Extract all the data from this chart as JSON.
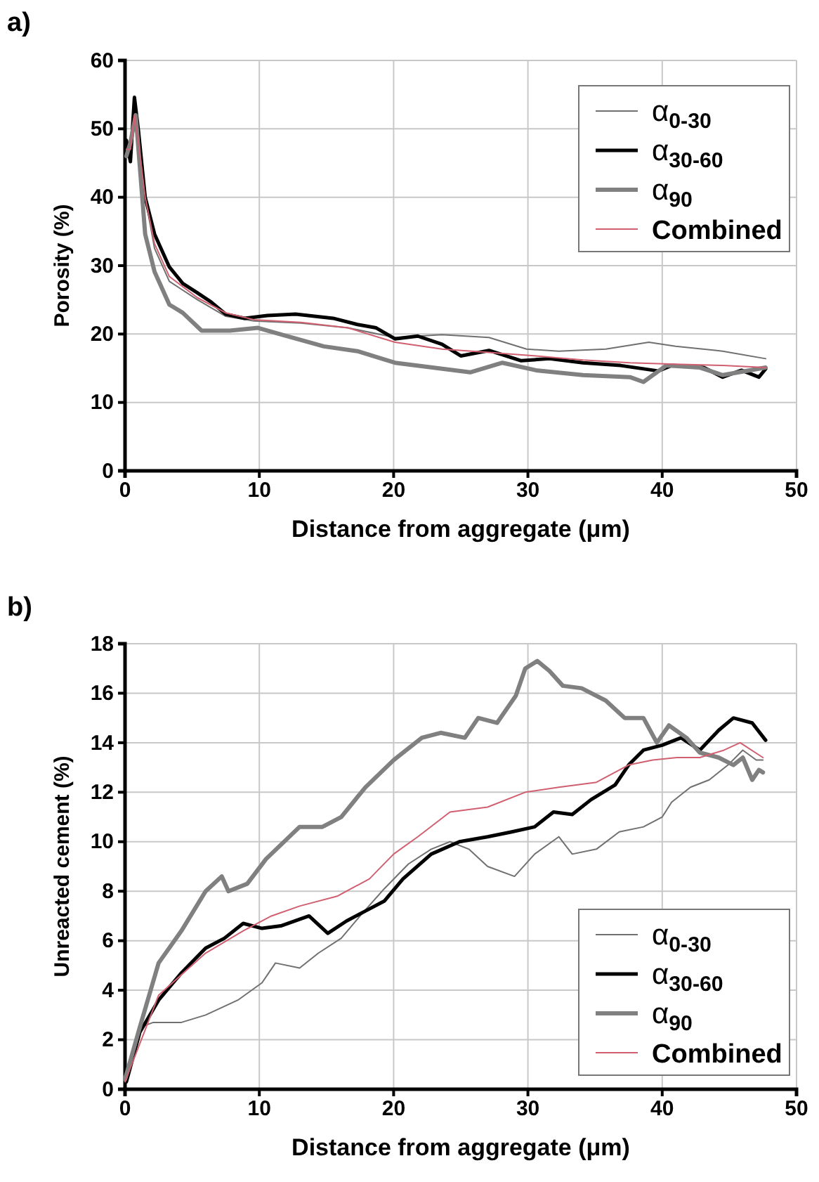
{
  "chart_data": [
    {
      "type": "line",
      "title": "a)",
      "xlabel": "Distance from aggregate (μm)",
      "ylabel": "Porosity (%)",
      "xlim": [
        0,
        50
      ],
      "xticks": [
        0,
        10,
        20,
        30,
        40,
        50
      ],
      "ylim": [
        0,
        60
      ],
      "yticks": [
        0,
        10,
        20,
        30,
        40,
        50,
        60
      ],
      "grid": true,
      "legend": "top right",
      "marker": "none",
      "line_style": "solid",
      "series": [
        {
          "name": "α$_{0-30}$",
          "color": "#707070",
          "x": [
            0.1,
            0.4,
            0.7,
            1.0,
            1.5,
            2.2,
            3.3,
            5.4,
            7.5,
            9.6,
            13.1,
            16.6,
            20.1,
            23.6,
            27.1,
            29.9,
            32.3,
            35.8,
            39,
            41,
            44.5,
            47.7
          ],
          "values": [
            47,
            46,
            51,
            48,
            40,
            32.5,
            27.7,
            25,
            22.6,
            21.9,
            21.6,
            20.9,
            19.5,
            19.9,
            19.5,
            17.8,
            17.5,
            17.8,
            18.8,
            18.2,
            17.5,
            16.4
          ]
        },
        {
          "name": "α$_{30-60}$",
          "color": "#000000",
          "x": [
            0.1,
            0.4,
            0.7,
            1.0,
            1.5,
            2.2,
            3.3,
            4.3,
            5.4,
            6.4,
            7.5,
            8.9,
            10.6,
            12.7,
            14.1,
            15.5,
            17.3,
            18.7,
            20.1,
            21.8,
            23.6,
            25,
            27.1,
            29.5,
            31.6,
            34.1,
            36.9,
            39.7,
            40.7,
            43.1,
            44.5,
            45.9,
            47.2,
            47.7
          ],
          "values": [
            48.3,
            45.2,
            54.6,
            49.7,
            40,
            34.6,
            29.8,
            27.4,
            26,
            24.7,
            22.9,
            22.3,
            22.7,
            22.9,
            22.6,
            22.3,
            21.4,
            20.9,
            19.3,
            19.7,
            18.5,
            16.8,
            17.6,
            16.1,
            16.4,
            15.8,
            15.4,
            14.6,
            15.4,
            15.1,
            13.7,
            14.7,
            13.7,
            14.9
          ]
        },
        {
          "name": "α$_{90}$",
          "color": "#808080",
          "x": [
            0.1,
            0.4,
            0.8,
            1.0,
            1.5,
            2.2,
            3.3,
            4.3,
            5.7,
            7.8,
            9.9,
            11.7,
            14.8,
            17.3,
            20.1,
            22.9,
            25.7,
            28.1,
            30.6,
            34.1,
            37.6,
            38.6,
            40.3,
            42.8,
            44.5,
            47.7
          ],
          "values": [
            46,
            48,
            52,
            47,
            34.6,
            29.1,
            24.3,
            23.1,
            20.5,
            20.5,
            20.9,
            19.9,
            18.2,
            17.5,
            15.8,
            15.1,
            14.4,
            15.8,
            14.7,
            14,
            13.7,
            13,
            15.4,
            15.1,
            14,
            15.1
          ]
        },
        {
          "name": "Combined",
          "color": "#d06070",
          "x": [
            0.1,
            0.4,
            0.7,
            1.0,
            1.5,
            2.2,
            3.3,
            5.4,
            7.5,
            9.6,
            13.1,
            16.6,
            20.1,
            23.6,
            27.1,
            30.6,
            34.1,
            37.6,
            41,
            44.5,
            47.7
          ],
          "values": [
            47,
            47,
            52,
            48,
            40,
            33.2,
            28.4,
            25.3,
            23.1,
            22.1,
            21.7,
            20.9,
            18.8,
            17.8,
            17.3,
            16.8,
            16.2,
            15.8,
            15.6,
            15.4,
            15.1
          ]
        }
      ]
    },
    {
      "type": "line",
      "title": "b)",
      "xlabel": "Distance from aggregate (μm)",
      "ylabel": "Unreacted cement (%)",
      "xlim": [
        0,
        50
      ],
      "xticks": [
        0,
        10,
        20,
        30,
        40,
        50
      ],
      "ylim": [
        0,
        18
      ],
      "yticks": [
        0,
        2,
        4,
        6,
        8,
        10,
        12,
        14,
        16,
        18
      ],
      "grid": true,
      "legend": "bottom right",
      "marker": "none",
      "line_style": "solid",
      "series": [
        {
          "name": "α$_{0-30}$",
          "color": "#707070",
          "x": [
            0.1,
            1.1,
            2.1,
            4.2,
            6,
            8.4,
            10.2,
            11.2,
            13,
            14.4,
            16.1,
            17.5,
            19.3,
            21.1,
            22.8,
            24.2,
            25.6,
            27,
            29,
            30.5,
            32.3,
            33.3,
            35.1,
            36.8,
            38.6,
            40,
            40.7,
            42.1,
            43.5,
            44.9,
            46,
            47,
            47.5
          ],
          "values": [
            0.3,
            2.5,
            2.7,
            2.7,
            3,
            3.6,
            4.3,
            5.1,
            4.9,
            5.5,
            6.1,
            7,
            8.1,
            9.1,
            9.7,
            10,
            9.7,
            9,
            8.6,
            9.5,
            10.2,
            9.5,
            9.7,
            10.4,
            10.6,
            11,
            11.6,
            12.2,
            12.5,
            13.1,
            13.7,
            13.3,
            13.3
          ]
        },
        {
          "name": "α$_{30-60}$",
          "color": "#000000",
          "x": [
            0.1,
            1.1,
            2.5,
            4.2,
            6,
            7.4,
            8.8,
            10.2,
            11.6,
            13.7,
            15.1,
            16.5,
            17.9,
            19.3,
            20.7,
            22.8,
            24.9,
            27,
            28.8,
            30.5,
            31.9,
            33.3,
            34.7,
            36.5,
            37.5,
            38.6,
            40,
            41.4,
            42.8,
            44.2,
            45.3,
            46.7,
            47.7
          ],
          "values": [
            0.3,
            2.3,
            3.6,
            4.7,
            5.7,
            6.1,
            6.7,
            6.5,
            6.6,
            7,
            6.3,
            6.8,
            7.2,
            7.6,
            8.5,
            9.5,
            10,
            10.2,
            10.4,
            10.6,
            11.2,
            11.1,
            11.7,
            12.3,
            13.1,
            13.7,
            13.9,
            14.2,
            13.7,
            14.5,
            15,
            14.8,
            14.1
          ]
        },
        {
          "name": "α$_{90}$",
          "color": "#808080",
          "x": [
            0,
            1.1,
            2.5,
            4.2,
            6,
            7.2,
            7.7,
            9.1,
            10.5,
            13,
            14.7,
            16.1,
            17.9,
            20,
            22.1,
            23.5,
            25.3,
            26.3,
            27.7,
            29.1,
            29.8,
            30.7,
            31.6,
            32.6,
            34,
            35.8,
            37.2,
            38.6,
            39.6,
            40.5,
            41.8,
            42.8,
            44.2,
            45.3,
            46,
            46.7,
            47.2,
            47.5
          ],
          "values": [
            0.4,
            2.5,
            5.1,
            6.4,
            8,
            8.6,
            8,
            8.3,
            9.3,
            10.6,
            10.6,
            11,
            12.2,
            13.3,
            14.2,
            14.4,
            14.2,
            15,
            14.8,
            15.9,
            17,
            17.3,
            16.9,
            16.3,
            16.2,
            15.7,
            15,
            15,
            14,
            14.7,
            14.2,
            13.6,
            13.4,
            13.1,
            13.4,
            12.5,
            12.9,
            12.8
          ]
        },
        {
          "name": "Combined",
          "color": "#d06070",
          "x": [
            0,
            2.5,
            6,
            8.8,
            10.9,
            13,
            15.8,
            18.2,
            20,
            21.8,
            24.2,
            27,
            29.8,
            32.3,
            35.1,
            37.5,
            39.3,
            41.1,
            42.8,
            44.6,
            45.8,
            47.5
          ],
          "values": [
            0.3,
            3.8,
            5.5,
            6.4,
            7,
            7.4,
            7.8,
            8.5,
            9.5,
            10.2,
            11.2,
            11.4,
            12,
            12.2,
            12.4,
            13.1,
            13.3,
            13.4,
            13.4,
            13.7,
            14,
            13.4
          ]
        }
      ]
    }
  ]
}
